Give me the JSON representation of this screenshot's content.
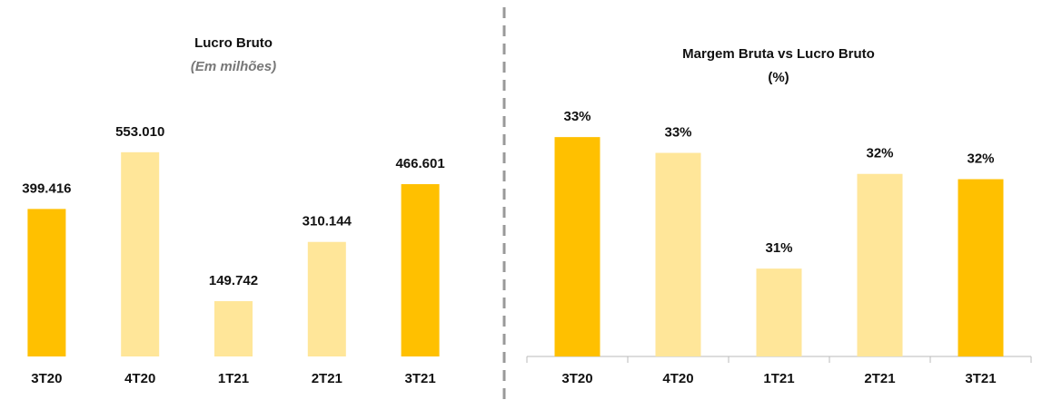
{
  "chart_data": [
    {
      "type": "bar",
      "title": "Lucro Bruto",
      "subtitle": "(Em milhões)",
      "categories": [
        "3T20",
        "4T20",
        "1T21",
        "2T21",
        "3T21"
      ],
      "values": [
        399416,
        553010,
        149742,
        310144,
        466601
      ],
      "value_labels": [
        "399.416",
        "553.010",
        "149.742",
        "310.144",
        "466.601"
      ],
      "colors": [
        "#FFC000",
        "#FFE699",
        "#FFE699",
        "#FFE699",
        "#FFC000"
      ],
      "ylim": [
        0,
        700000
      ]
    },
    {
      "type": "bar",
      "title": "Margem Bruta vs Lucro Bruto",
      "subtitle": "(%)",
      "categories": [
        "3T20",
        "4T20",
        "1T21",
        "2T21",
        "3T21"
      ],
      "values": [
        33.1,
        32.8,
        30.6,
        32.4,
        32.3
      ],
      "value_labels": [
        "33%",
        "33%",
        "31%",
        "32%",
        "32%"
      ],
      "colors": [
        "#FFC000",
        "#FFE699",
        "#FFE699",
        "#FFE699",
        "#FFC000"
      ],
      "ylim": [
        28.93,
        33.93
      ]
    }
  ]
}
